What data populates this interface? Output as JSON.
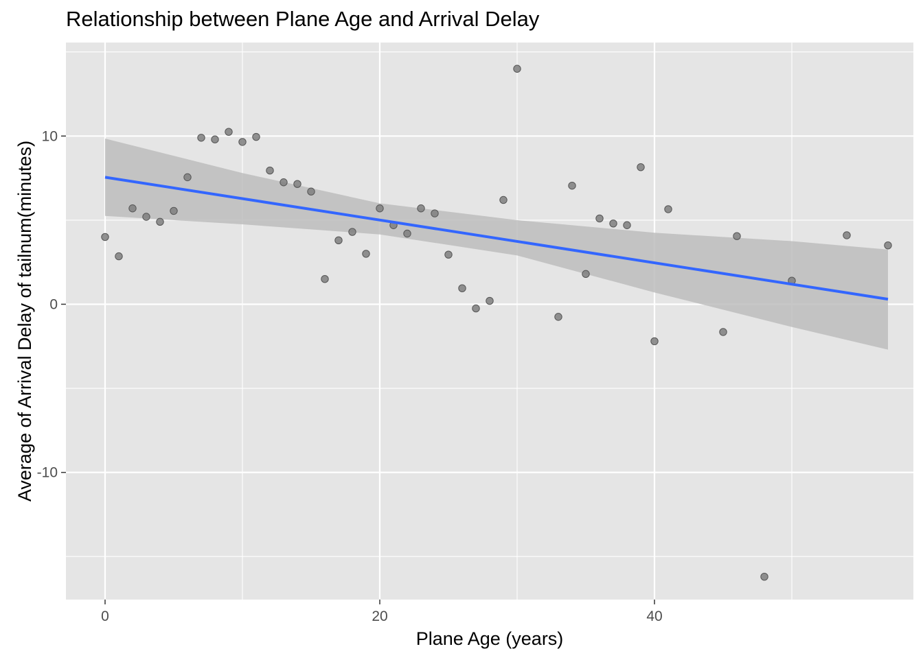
{
  "chart_data": {
    "type": "scatter",
    "title": "Relationship between Plane Age and Arrival Delay",
    "xlabel": "Plane Age (years)",
    "ylabel": "Average of Arrival Delay of tailnum(minutes)",
    "xlim": [
      -2.85,
      58.85
    ],
    "ylim": [
      -17.56,
      15.56
    ],
    "x_ticks": [
      0,
      20,
      40
    ],
    "x_minor_ticks": [
      10,
      30,
      50
    ],
    "y_ticks": [
      -10,
      0,
      10
    ],
    "y_minor_ticks": [
      -15,
      -5,
      5,
      15
    ],
    "grid": true,
    "legend": "none",
    "colors": {
      "panel_background": "#e5e5e5",
      "grid": "#ffffff",
      "points": "#7f7f7f",
      "trend_line": "#3366ff",
      "confidence_band": "#bdbdbd"
    },
    "series": [
      {
        "mark": "point",
        "x": [
          0,
          1,
          2,
          3,
          4,
          5,
          6,
          7,
          8,
          9,
          10,
          11,
          12,
          13,
          14,
          15,
          16,
          17,
          18,
          19,
          20,
          21,
          22,
          23,
          24,
          25,
          26,
          27,
          28,
          29,
          30,
          33,
          34,
          35,
          36,
          37,
          38,
          39,
          40,
          41,
          45,
          46,
          48,
          50,
          54,
          57
        ],
        "y": [
          4.0,
          2.85,
          5.7,
          5.2,
          4.9,
          5.55,
          7.55,
          9.9,
          9.8,
          10.25,
          9.65,
          9.95,
          7.95,
          7.25,
          7.15,
          6.7,
          1.5,
          3.8,
          4.3,
          3.0,
          5.7,
          4.7,
          4.2,
          5.7,
          5.4,
          2.95,
          0.95,
          -0.25,
          0.2,
          6.2,
          14.0,
          -0.75,
          7.05,
          1.8,
          5.1,
          4.8,
          4.7,
          8.15,
          -2.2,
          5.65,
          -1.65,
          4.05,
          -16.2,
          1.4,
          4.1,
          3.5
        ]
      },
      {
        "mark": "linear-fit",
        "x": [
          0,
          57
        ],
        "y": [
          7.55,
          0.3
        ],
        "band_x": [
          0,
          10,
          20,
          30,
          40,
          50,
          57
        ],
        "band_lower": [
          5.25,
          4.75,
          4.15,
          2.9,
          0.7,
          -1.35,
          -2.7
        ],
        "band_upper": [
          9.85,
          7.8,
          6.0,
          5.0,
          4.25,
          3.75,
          3.25
        ]
      }
    ]
  }
}
